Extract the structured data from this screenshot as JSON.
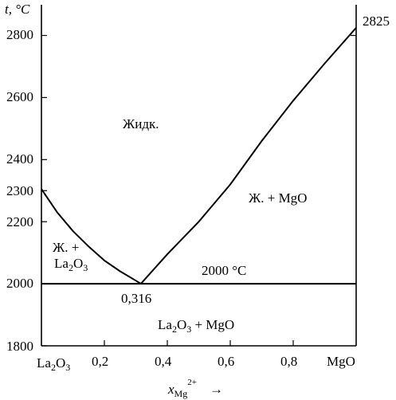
{
  "diagram": {
    "y_axis_label": "t, °C",
    "x_axis_label": {
      "main": "x",
      "sub": "Mg",
      "sup": "2+",
      "arrow": "→"
    },
    "left_y_ticks": [
      "1800",
      "2000",
      "2200",
      "2300",
      "2400",
      "2600",
      "2800"
    ],
    "x_ticks": [
      "0,2",
      "0,4",
      "0,6",
      "0,8"
    ],
    "left_end_label": {
      "main": "La",
      "sub1": "2",
      "mid": "O",
      "sub2": "3"
    },
    "right_end_label": "MgO",
    "right_value_label": "2825",
    "eutectic_composition_label": "0,316",
    "eutectic_temperature_label": "2000 °C",
    "region_labels": {
      "liquid": "Жидк.",
      "liquid_plus_mgo": "Ж. + MgO",
      "liquid_plus_la2o3_line1": "Ж. +",
      "liquid_plus_la2o3_line2": {
        "main": "La",
        "sub1": "2",
        "mid": "O",
        "sub2": "3"
      },
      "solid": {
        "a": "La",
        "b": "2",
        "c": "O",
        "d": "3",
        "e": " + MgO"
      }
    }
  },
  "chart_data": {
    "type": "line",
    "title": "",
    "xlabel": "x Mg2+",
    "ylabel": "t, °C",
    "xlim": [
      0,
      1
    ],
    "ylim": [
      1800,
      2850
    ],
    "x_ticks": [
      0.2,
      0.4,
      0.6,
      0.8
    ],
    "y_ticks": [
      1800,
      2000,
      2200,
      2300,
      2400,
      2600,
      2800
    ],
    "series": [
      {
        "name": "La2O3 liquidus",
        "x": [
          0,
          0.05,
          0.1,
          0.15,
          0.2,
          0.25,
          0.3,
          0.316
        ],
        "y": [
          2305,
          2230,
          2170,
          2120,
          2075,
          2040,
          2010,
          2000
        ]
      },
      {
        "name": "MgO liquidus",
        "x": [
          0.316,
          0.4,
          0.5,
          0.6,
          0.7,
          0.8,
          0.9,
          1.0
        ],
        "y": [
          2000,
          2095,
          2200,
          2320,
          2460,
          2590,
          2710,
          2825
        ]
      },
      {
        "name": "eutectic line",
        "x": [
          0,
          1
        ],
        "y": [
          2000,
          2000
        ]
      }
    ],
    "annotations": {
      "eutectic_point": {
        "x": 0.316,
        "y": 2000
      },
      "mgo_melting_point": {
        "x": 1.0,
        "y": 2825
      },
      "la2o3_melting_point": {
        "x": 0,
        "y": 2305
      }
    }
  }
}
